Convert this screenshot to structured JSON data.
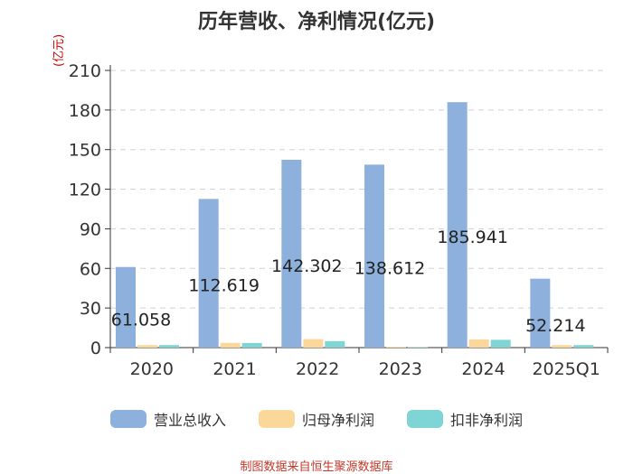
{
  "chart_data": {
    "type": "bar",
    "title": "历年营收、净利情况(亿元)",
    "ylabel": "(亿元)",
    "xlabel": "",
    "categories": [
      "2020",
      "2021",
      "2022",
      "2023",
      "2024",
      "2025Q1"
    ],
    "ylim": [
      0,
      210
    ],
    "yticks": [
      0,
      30,
      60,
      90,
      120,
      150,
      180,
      210
    ],
    "grid": true,
    "legend_position": "bottom",
    "series": [
      {
        "name": "营业总收入",
        "color": "#8eb0dc",
        "values": [
          61.058,
          112.619,
          142.302,
          138.612,
          185.941,
          52.214
        ],
        "labels": [
          "61.058",
          "112.619",
          "142.302",
          "138.612",
          "185.941",
          "52.214"
        ]
      },
      {
        "name": "归母净利润",
        "color": "#fcd79a",
        "values": [
          1.9,
          3.6,
          6.4,
          0.6,
          6.2,
          1.9
        ]
      },
      {
        "name": "扣非净利润",
        "color": "#7fd4d6",
        "values": [
          1.9,
          3.5,
          4.9,
          0.3,
          5.9,
          1.9
        ]
      }
    ]
  },
  "source_note": "制图数据来自恒生聚源数据库"
}
